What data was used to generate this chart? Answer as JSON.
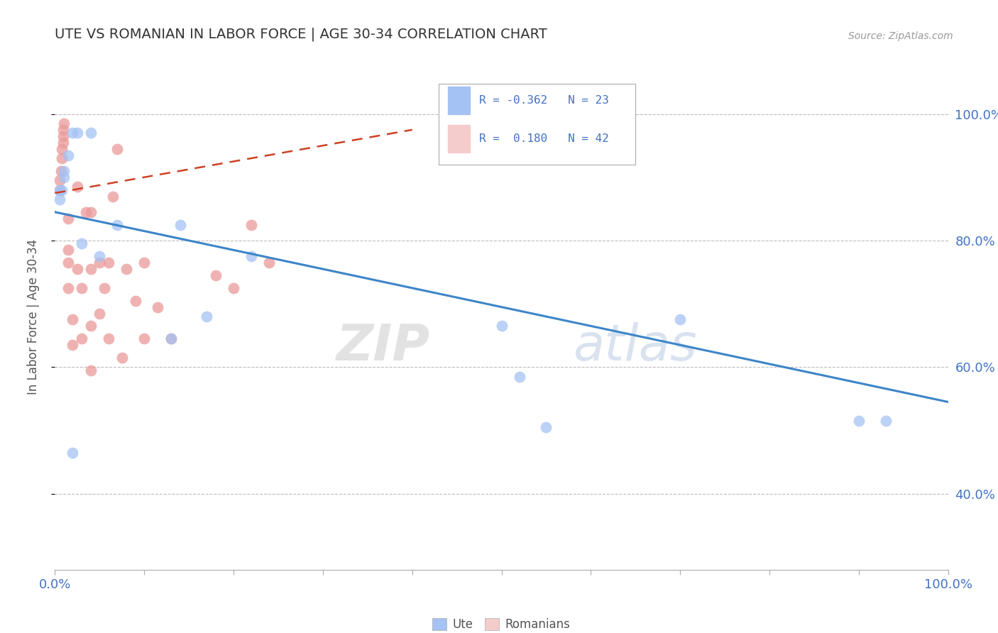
{
  "title": "UTE VS ROMANIAN IN LABOR FORCE | AGE 30-34 CORRELATION CHART",
  "ylabel": "In Labor Force | Age 30-34",
  "source_text": "Source: ZipAtlas.com",
  "xlim": [
    0.0,
    1.0
  ],
  "ylim": [
    0.28,
    1.08
  ],
  "ytick_labels": [
    "100.0%",
    "80.0%",
    "60.0%",
    "40.0%"
  ],
  "ytick_values": [
    1.0,
    0.8,
    0.6,
    0.4
  ],
  "watermark_zip": "ZIP",
  "watermark_atlas": "atlas",
  "legend_r_ute": "-0.362",
  "legend_n_ute": "23",
  "legend_r_rom": "0.180",
  "legend_n_rom": "42",
  "ute_color": "#a4c2f4",
  "romanian_color": "#ea9999",
  "ute_fill_color": "#a4c2f4",
  "romanian_fill_color": "#f4cccc",
  "ute_line_color": "#3d85c8",
  "romanian_line_color": "#cc4125",
  "ute_scatter_x": [
    0.02,
    0.03,
    0.05,
    0.07,
    0.005,
    0.005,
    0.008,
    0.01,
    0.01,
    0.015,
    0.02,
    0.025,
    0.04,
    0.13,
    0.14,
    0.17,
    0.22,
    0.5,
    0.52,
    0.55,
    0.7,
    0.9,
    0.93
  ],
  "ute_scatter_y": [
    0.465,
    0.795,
    0.775,
    0.825,
    0.88,
    0.865,
    0.88,
    0.9,
    0.91,
    0.935,
    0.97,
    0.97,
    0.97,
    0.645,
    0.825,
    0.68,
    0.775,
    0.665,
    0.585,
    0.505,
    0.675,
    0.515,
    0.515
  ],
  "rom_scatter_x": [
    0.005,
    0.005,
    0.007,
    0.008,
    0.008,
    0.009,
    0.009,
    0.009,
    0.01,
    0.015,
    0.015,
    0.015,
    0.015,
    0.02,
    0.02,
    0.025,
    0.025,
    0.03,
    0.03,
    0.035,
    0.04,
    0.04,
    0.04,
    0.04,
    0.05,
    0.05,
    0.055,
    0.06,
    0.06,
    0.065,
    0.07,
    0.075,
    0.08,
    0.09,
    0.1,
    0.1,
    0.115,
    0.13,
    0.18,
    0.2,
    0.22,
    0.24
  ],
  "rom_scatter_y": [
    0.88,
    0.895,
    0.91,
    0.93,
    0.945,
    0.955,
    0.965,
    0.975,
    0.985,
    0.725,
    0.765,
    0.785,
    0.835,
    0.635,
    0.675,
    0.755,
    0.885,
    0.645,
    0.725,
    0.845,
    0.595,
    0.665,
    0.755,
    0.845,
    0.685,
    0.765,
    0.725,
    0.645,
    0.765,
    0.87,
    0.945,
    0.615,
    0.755,
    0.705,
    0.645,
    0.765,
    0.695,
    0.645,
    0.745,
    0.725,
    0.825,
    0.765
  ],
  "ute_trend_x": [
    0.0,
    1.0
  ],
  "ute_trend_y_start": 0.845,
  "ute_trend_y_end": 0.545,
  "rom_trend_x": [
    0.0,
    0.4
  ],
  "rom_trend_y_start": 0.875,
  "rom_trend_y_end": 0.975,
  "background_color": "#ffffff",
  "grid_color": "#bbbbbb",
  "tick_color": "#555555",
  "label_color": "#4472c4",
  "title_color": "#333333"
}
